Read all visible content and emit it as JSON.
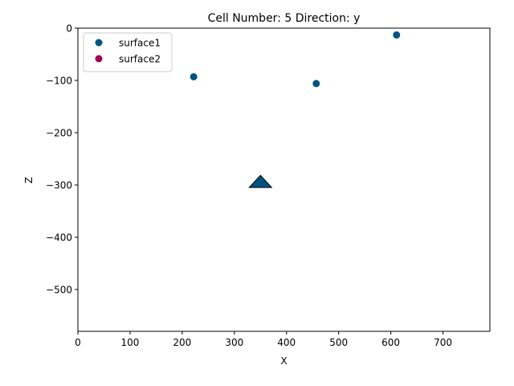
{
  "chart_data": {
    "type": "scatter",
    "title": "Cell Number: 5 Direction: y",
    "xlabel": "X",
    "ylabel": "Z",
    "xlim": [
      0,
      790
    ],
    "ylim": [
      -580,
      0
    ],
    "x_ticks": [
      0,
      100,
      200,
      300,
      400,
      500,
      600,
      700
    ],
    "y_ticks": [
      0,
      -100,
      -200,
      -300,
      -400,
      -500
    ],
    "x_tick_labels": [
      "0",
      "100",
      "200",
      "300",
      "400",
      "500",
      "600",
      "700"
    ],
    "y_tick_labels": [
      "0",
      "−100",
      "−200",
      "−300",
      "−400",
      "−500"
    ],
    "grid": false,
    "legend_position": "top-left",
    "series": [
      {
        "name": "surface1",
        "color": "#015482",
        "marker": "circle",
        "points": [
          {
            "x": 222,
            "y": -93
          },
          {
            "x": 457,
            "y": -106
          },
          {
            "x": 611,
            "y": -13
          }
        ]
      },
      {
        "name": "surface2",
        "color": "#9f0052",
        "marker": "circle",
        "points": []
      }
    ],
    "orientations": [
      {
        "x": 350,
        "y": -294,
        "color": "#015482",
        "marker": "triangle-up"
      }
    ]
  }
}
